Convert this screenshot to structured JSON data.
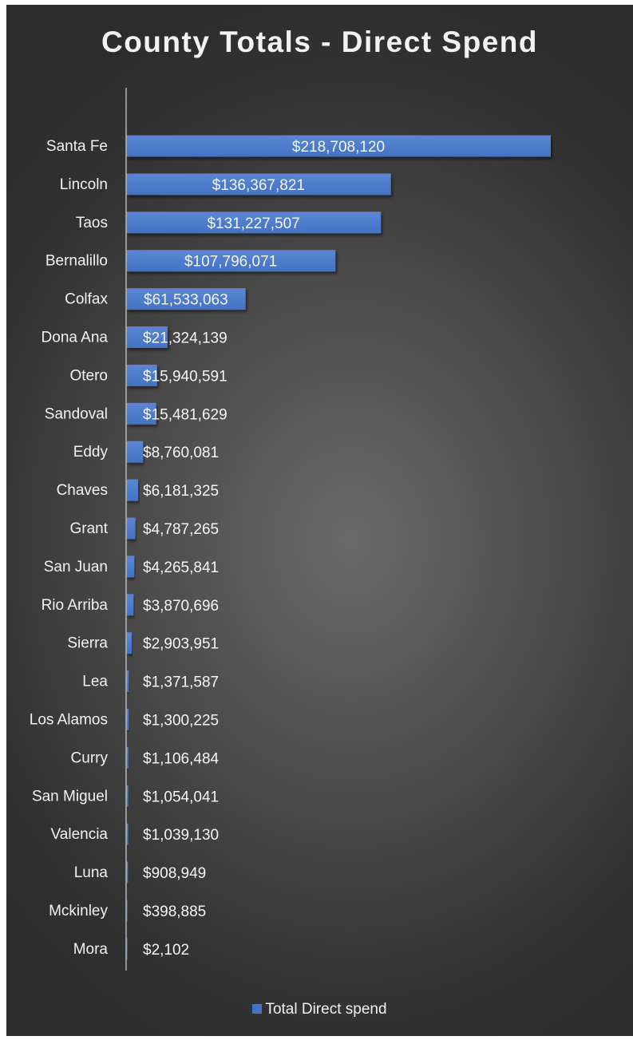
{
  "chart_data": {
    "type": "bar",
    "orientation": "horizontal",
    "title": "County Totals - Direct Spend",
    "categories": [
      "Santa Fe",
      "Lincoln",
      "Taos",
      "Bernalillo",
      "Colfax",
      "Dona Ana",
      "Otero",
      "Sandoval",
      "Eddy",
      "Chaves",
      "Grant",
      "San Juan",
      "Rio Arriba",
      "Sierra",
      "Lea",
      "Los Alamos",
      "Curry",
      "San Miguel",
      "Valencia",
      "Luna",
      "Mckinley",
      "Mora"
    ],
    "series": [
      {
        "name": "Total Direct spend",
        "values": [
          218708120,
          136367821,
          131227507,
          107796071,
          61533063,
          21324139,
          15940591,
          15481629,
          8760081,
          6181325,
          4787265,
          4265841,
          3870696,
          2903951,
          1371587,
          1300225,
          1106484,
          1054041,
          1039130,
          908949,
          398885,
          2102
        ],
        "labels": [
          "$218,708,120",
          "$136,367,821",
          "$131,227,507",
          "$107,796,071",
          "$61,533,063",
          "$21,324,139",
          "$15,940,591",
          "$15,481,629",
          "$8,760,081",
          "$6,181,325",
          "$4,787,265",
          "$4,265,841",
          "$3,870,696",
          "$2,903,951",
          "$1,371,587",
          "$1,300,225",
          "$1,106,484",
          "$1,054,041",
          "$1,039,130",
          "$908,949",
          "$398,885",
          "$2,102"
        ],
        "color": "#4472c4"
      }
    ],
    "xlim": [
      0,
      218708120
    ],
    "grid": false,
    "legend_position": "bottom",
    "background": "#3a3a3a",
    "text_color": "#f2f2f2"
  }
}
